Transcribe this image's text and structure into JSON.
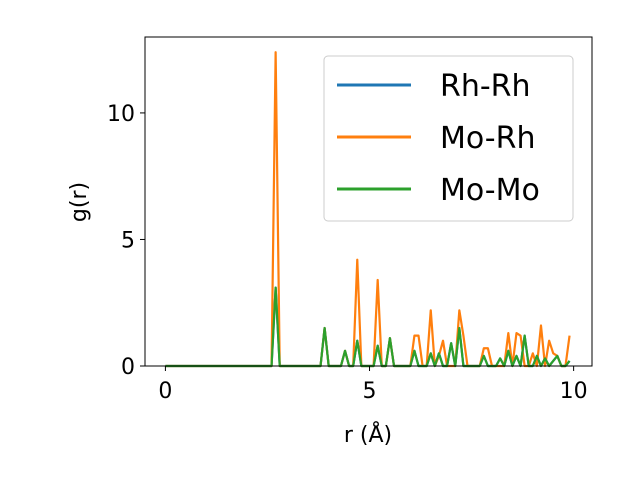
{
  "chart_data": {
    "type": "line",
    "title": "",
    "xlabel": "r (Å)",
    "ylabel": "g(r)",
    "xlim": [
      -0.5,
      10.45
    ],
    "ylim": [
      0,
      13.0
    ],
    "xticks": [
      0,
      5,
      10
    ],
    "xtick_labels": [
      "0",
      "5",
      "10"
    ],
    "yticks": [
      0,
      5,
      10
    ],
    "ytick_labels": [
      "0",
      "5",
      "10"
    ],
    "grid": false,
    "legend_position": "top-right",
    "x": [
      0.0,
      0.1,
      0.2,
      0.3,
      0.4,
      0.5,
      0.6,
      0.7,
      0.8,
      0.9,
      1.0,
      1.1,
      1.2,
      1.3,
      1.4,
      1.5,
      1.6,
      1.7,
      1.8,
      1.9,
      2.0,
      2.1,
      2.2,
      2.3,
      2.4,
      2.5,
      2.6,
      2.7,
      2.8,
      2.9,
      3.0,
      3.1,
      3.2,
      3.3,
      3.4,
      3.5,
      3.6,
      3.7,
      3.8,
      3.9,
      4.0,
      4.1,
      4.2,
      4.3,
      4.4,
      4.5,
      4.6,
      4.7,
      4.8,
      4.9,
      5.0,
      5.1,
      5.2,
      5.3,
      5.4,
      5.5,
      5.6,
      5.7,
      5.8,
      5.9,
      6.0,
      6.1,
      6.2,
      6.3,
      6.4,
      6.5,
      6.6,
      6.7,
      6.8,
      6.9,
      7.0,
      7.1,
      7.2,
      7.3,
      7.4,
      7.5,
      7.6,
      7.7,
      7.8,
      7.9,
      8.0,
      8.1,
      8.2,
      8.3,
      8.4,
      8.5,
      8.6,
      8.7,
      8.8,
      8.9,
      9.0,
      9.1,
      9.2,
      9.3,
      9.4,
      9.5,
      9.6,
      9.7,
      9.8,
      9.9
    ],
    "series": [
      {
        "name": "Rh-Rh",
        "color": "#1f77b4",
        "values": [
          0,
          0,
          0,
          0,
          0,
          0,
          0,
          0,
          0,
          0,
          0,
          0,
          0,
          0,
          0,
          0,
          0,
          0,
          0,
          0,
          0,
          0,
          0,
          0,
          0,
          0,
          0,
          3.1,
          0,
          0,
          0,
          0,
          0,
          0,
          0,
          0,
          0,
          0,
          0,
          1.5,
          0,
          0,
          0,
          0,
          0.6,
          0,
          0,
          1.0,
          0,
          0,
          0,
          0,
          0.8,
          0,
          0,
          1.1,
          0,
          0,
          0,
          0,
          0,
          0.6,
          0,
          0,
          0,
          0.5,
          0,
          0.5,
          0,
          0,
          0.9,
          0,
          1.5,
          0,
          0,
          0,
          0,
          0,
          0.4,
          0,
          0,
          0,
          0.3,
          0,
          0.6,
          0,
          0.4,
          0,
          1.2,
          0,
          0,
          0.4,
          0,
          0.3,
          0,
          0.2,
          0.4,
          0,
          0,
          0.2
        ]
      },
      {
        "name": "Mo-Rh",
        "color": "#ff7f0e",
        "values": [
          0,
          0,
          0,
          0,
          0,
          0,
          0,
          0,
          0,
          0,
          0,
          0,
          0,
          0,
          0,
          0,
          0,
          0,
          0,
          0,
          0,
          0,
          0,
          0,
          0,
          0,
          0,
          12.4,
          0,
          0,
          0,
          0,
          0,
          0,
          0,
          0,
          0,
          0,
          0,
          1.5,
          0,
          0,
          0,
          0,
          0.6,
          0,
          0,
          4.2,
          0,
          0,
          0,
          0,
          3.4,
          0,
          0,
          1.1,
          0,
          0,
          0,
          0,
          0,
          1.2,
          1.2,
          0,
          0,
          2.2,
          0,
          0.4,
          1.0,
          0,
          0,
          0,
          2.2,
          1.2,
          0,
          0,
          0,
          0,
          0.7,
          0.7,
          0,
          0,
          0,
          0,
          1.3,
          0,
          1.3,
          1.2,
          0,
          0,
          0.5,
          0,
          1.6,
          0,
          1.0,
          0.5,
          0.4,
          0,
          0,
          1.2
        ]
      },
      {
        "name": "Mo-Mo",
        "color": "#2ca02c",
        "values": [
          0,
          0,
          0,
          0,
          0,
          0,
          0,
          0,
          0,
          0,
          0,
          0,
          0,
          0,
          0,
          0,
          0,
          0,
          0,
          0,
          0,
          0,
          0,
          0,
          0,
          0,
          0,
          3.1,
          0,
          0,
          0,
          0,
          0,
          0,
          0,
          0,
          0,
          0,
          0,
          1.5,
          0,
          0,
          0,
          0,
          0.6,
          0,
          0,
          1.0,
          0,
          0,
          0,
          0,
          0.8,
          0,
          0,
          1.1,
          0,
          0,
          0,
          0,
          0,
          0.6,
          0,
          0,
          0,
          0.5,
          0,
          0.5,
          0,
          0,
          0.9,
          0,
          1.5,
          0,
          0,
          0,
          0,
          0,
          0.4,
          0,
          0,
          0,
          0.3,
          0,
          0.6,
          0,
          0.4,
          0,
          1.2,
          0,
          0,
          0.4,
          0,
          0.3,
          0,
          0.2,
          0.4,
          0,
          0,
          0.2
        ]
      }
    ]
  }
}
